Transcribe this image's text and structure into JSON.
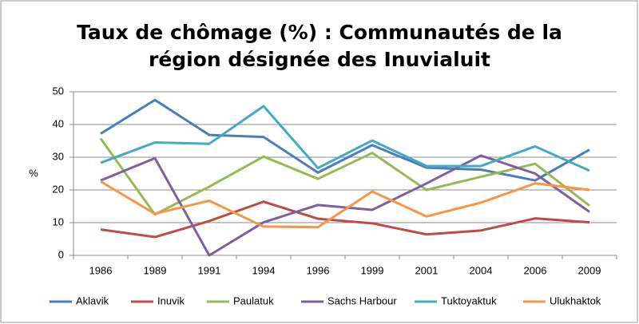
{
  "chart_data": {
    "type": "line",
    "title": [
      "Taux de chômage (%) : Communautés de la",
      "région désignée des Inuvialuit"
    ],
    "y_label": "%",
    "categories": [
      "1986",
      "1989",
      "1991",
      "1994",
      "1996",
      "1999",
      "2001",
      "2004",
      "2006",
      "2009"
    ],
    "series": [
      {
        "name": "Aklavik",
        "color": "#4a7ebb",
        "values": [
          37.2,
          47.5,
          36.8,
          36.2,
          25.3,
          33.7,
          26.8,
          26.2,
          22.9,
          32.3
        ]
      },
      {
        "name": "Inuvik",
        "color": "#be4b48",
        "values": [
          7.9,
          5.6,
          10.5,
          16.4,
          11.2,
          9.8,
          6.4,
          7.6,
          11.3,
          10.1
        ]
      },
      {
        "name": "Paulatuk",
        "color": "#98b954",
        "values": [
          35.7,
          12.5,
          21.0,
          30.2,
          23.4,
          31.3,
          20.0,
          24.0,
          28.0,
          15.2
        ]
      },
      {
        "name": "Sachs Harbour",
        "color": "#7d60a0",
        "values": [
          22.9,
          29.7,
          0,
          10.1,
          15.4,
          13.9,
          22.0,
          30.5,
          25.0,
          13.3
        ]
      },
      {
        "name": "Tuktoyaktuk",
        "color": "#46aac5",
        "values": [
          28.3,
          34.5,
          34.1,
          45.6,
          26.7,
          35.1,
          27.3,
          27.3,
          33.3,
          25.9
        ]
      },
      {
        "name": "Ulukhaktok",
        "color": "#f79646",
        "values": [
          22.6,
          12.7,
          16.7,
          8.8,
          8.6,
          19.5,
          11.9,
          16.1,
          22.0,
          20.0
        ]
      }
    ],
    "ylim": [
      0,
      50
    ],
    "yticks": [
      0,
      10,
      20,
      30,
      40,
      50
    ],
    "grid": true,
    "legend": "bottom"
  }
}
